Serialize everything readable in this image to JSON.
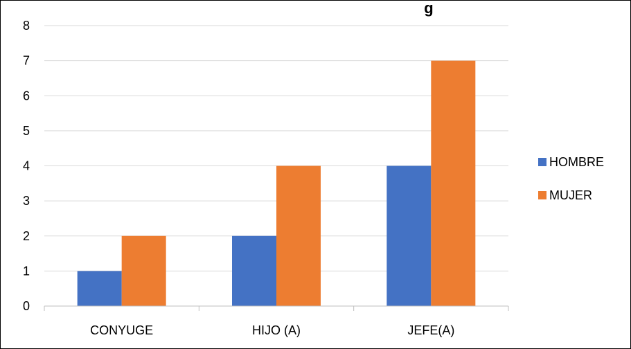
{
  "chart_data": {
    "type": "bar",
    "title": "g",
    "categories": [
      "CONYUGE",
      "HIJO (A)",
      "JEFE(A)"
    ],
    "series": [
      {
        "name": "HOMBRE",
        "values": [
          1,
          2,
          4
        ],
        "color": "#4472C4"
      },
      {
        "name": "MUJER",
        "values": [
          2,
          4,
          7
        ],
        "color": "#ED7D31"
      }
    ],
    "y_ticks": [
      "0",
      "1",
      "2",
      "3",
      "4",
      "5",
      "6",
      "7",
      "8"
    ],
    "ylim": [
      0,
      8
    ],
    "grid": true,
    "legend_position": "right",
    "gridline_color": "#d9d9d9"
  }
}
